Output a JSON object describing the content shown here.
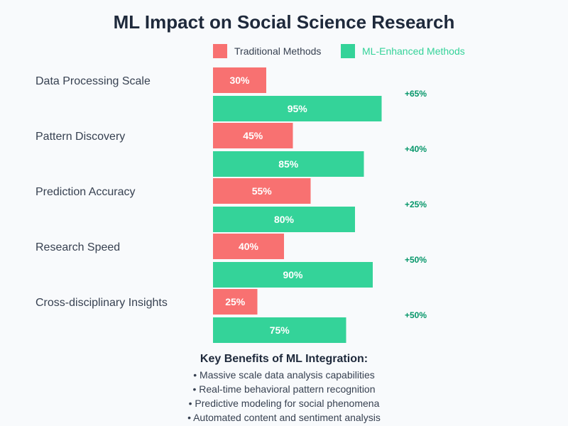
{
  "chart_data": {
    "type": "bar",
    "title": "ML Impact on Social Science Research",
    "categories": [
      "Data Processing Scale",
      "Pattern Discovery",
      "Prediction Accuracy",
      "Research Speed",
      "Cross-disciplinary Insights"
    ],
    "series": [
      {
        "name": "Traditional Methods",
        "values": [
          30,
          45,
          55,
          40,
          25
        ],
        "color": "#f87171"
      },
      {
        "name": "ML-Enhanced Methods",
        "values": [
          95,
          85,
          80,
          90,
          75
        ],
        "color": "#34d399"
      }
    ],
    "differences": [
      "+65%",
      "+40%",
      "+25%",
      "+50%",
      "+50%"
    ],
    "value_suffix": "%",
    "xlim": [
      0,
      100
    ],
    "legend": "top"
  },
  "benefits": {
    "title": "Key Benefits of ML Integration:",
    "items": [
      "• Massive scale data analysis capabilities",
      "• Real-time behavioral pattern recognition",
      "• Predictive modeling for social phenomena",
      "• Automated content and sentiment analysis"
    ]
  }
}
